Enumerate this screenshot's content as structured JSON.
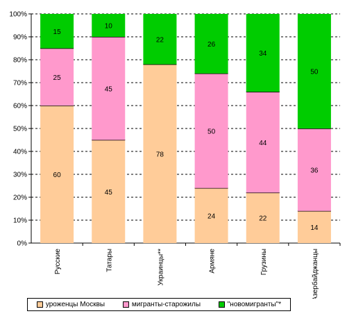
{
  "chart_data": {
    "type": "bar",
    "stacked": true,
    "categories": [
      "Русские",
      "Татары",
      "Украинцы**",
      "Армяне",
      "Грузины",
      "Азербайджанцы"
    ],
    "series": [
      {
        "name": "уроженцы Москвы",
        "color": "#FFCC99",
        "values": [
          60,
          45,
          78,
          24,
          22,
          14
        ]
      },
      {
        "name": "мигранты-старожилы",
        "color": "#FF99CC",
        "values": [
          25,
          45,
          0,
          50,
          44,
          36
        ]
      },
      {
        "name": "\"новомигранты\"*",
        "color": "#00CC00",
        "values": [
          15,
          10,
          22,
          26,
          34,
          50
        ]
      }
    ],
    "ylim": [
      0,
      100
    ],
    "yticks": [
      "0%",
      "10%",
      "20%",
      "30%",
      "40%",
      "50%",
      "60%",
      "70%",
      "80%",
      "90%",
      "100%"
    ],
    "grid": true,
    "legend_position": "bottom"
  }
}
